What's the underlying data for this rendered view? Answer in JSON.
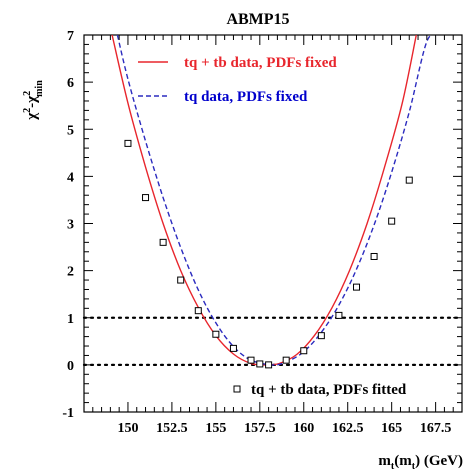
{
  "chart_data": {
    "type": "line",
    "title": "ABMP15",
    "xlabel": "m_t(m_t) (GeV)",
    "xlabel_parts": {
      "m": "m",
      "t1": "t",
      "open": "(m",
      "t2": "t",
      ") (GeV)": ") (GeV)"
    },
    "ylabel_parts": {
      "chi1": "χ",
      "sq1": "2",
      "dash": "-χ",
      "sq2": "2",
      "sub": "min"
    },
    "xlim": [
      147.5,
      169.0
    ],
    "ylim": [
      -1,
      7
    ],
    "x_ticks": [
      150,
      152.5,
      155,
      157.5,
      160,
      162.5,
      165,
      167.5
    ],
    "x_tick_labels": [
      "150",
      "152.5",
      "155",
      "157.5",
      "160",
      "162.5",
      "165",
      "167.5"
    ],
    "y_ticks": [
      -1,
      0,
      1,
      2,
      3,
      4,
      5,
      6,
      7
    ],
    "y_tick_labels": [
      "-1",
      "0",
      "1",
      "2",
      "3",
      "4",
      "5",
      "6",
      "7"
    ],
    "hlines": [
      0,
      1
    ],
    "series": [
      {
        "name": "tq + tb data, PDFs fixed",
        "style": "solid",
        "color": "#e8262d",
        "x": [
          149.1,
          150,
          151,
          152,
          153,
          154,
          155,
          156,
          157,
          157.8,
          158.6,
          159.6,
          160.6,
          161.6,
          162.6,
          163.6,
          164.6,
          165.6,
          166.4
        ],
        "y": [
          7.0,
          5.55,
          4.2,
          3.0,
          2.0,
          1.22,
          0.62,
          0.23,
          0.03,
          0.0,
          0.03,
          0.22,
          0.62,
          1.21,
          2.0,
          3.0,
          4.2,
          5.55,
          7.0
        ]
      },
      {
        "name": "tq data, PDFs fixed",
        "style": "dashed",
        "color": "#2b2bbf",
        "x": [
          149.4,
          150,
          151,
          152,
          153,
          154,
          155,
          156,
          157,
          158.2,
          159,
          160,
          161,
          162,
          163,
          164,
          165,
          166,
          167,
          167.7
        ],
        "y": [
          7.0,
          6.06,
          4.75,
          3.55,
          2.49,
          1.59,
          0.89,
          0.39,
          0.1,
          0.0,
          0.06,
          0.28,
          0.69,
          1.27,
          2.03,
          2.97,
          4.09,
          5.37,
          6.86,
          7.0
        ]
      },
      {
        "name": "tq + tb data, PDFs fitted",
        "style": "markers",
        "color": "#000000",
        "x": [
          150,
          151,
          152,
          153,
          154,
          155,
          156,
          157,
          157.5,
          158,
          159,
          160,
          161,
          162,
          163,
          164,
          165,
          166
        ],
        "y": [
          4.7,
          3.55,
          2.6,
          1.8,
          1.15,
          0.65,
          0.35,
          0.1,
          0.02,
          0.0,
          0.1,
          0.3,
          0.62,
          1.05,
          1.65,
          2.3,
          3.05,
          3.92
        ]
      }
    ],
    "legend": [
      {
        "label": "tq + tb data, PDFs fixed",
        "color": "#e8262d",
        "position": "top-center"
      },
      {
        "label": "tq data, PDFs fixed",
        "color": "#0000cc",
        "position": "top-center"
      },
      {
        "label": "tq + tb data, PDFs fitted",
        "color": "#000000",
        "position": "bottom-right"
      }
    ]
  }
}
